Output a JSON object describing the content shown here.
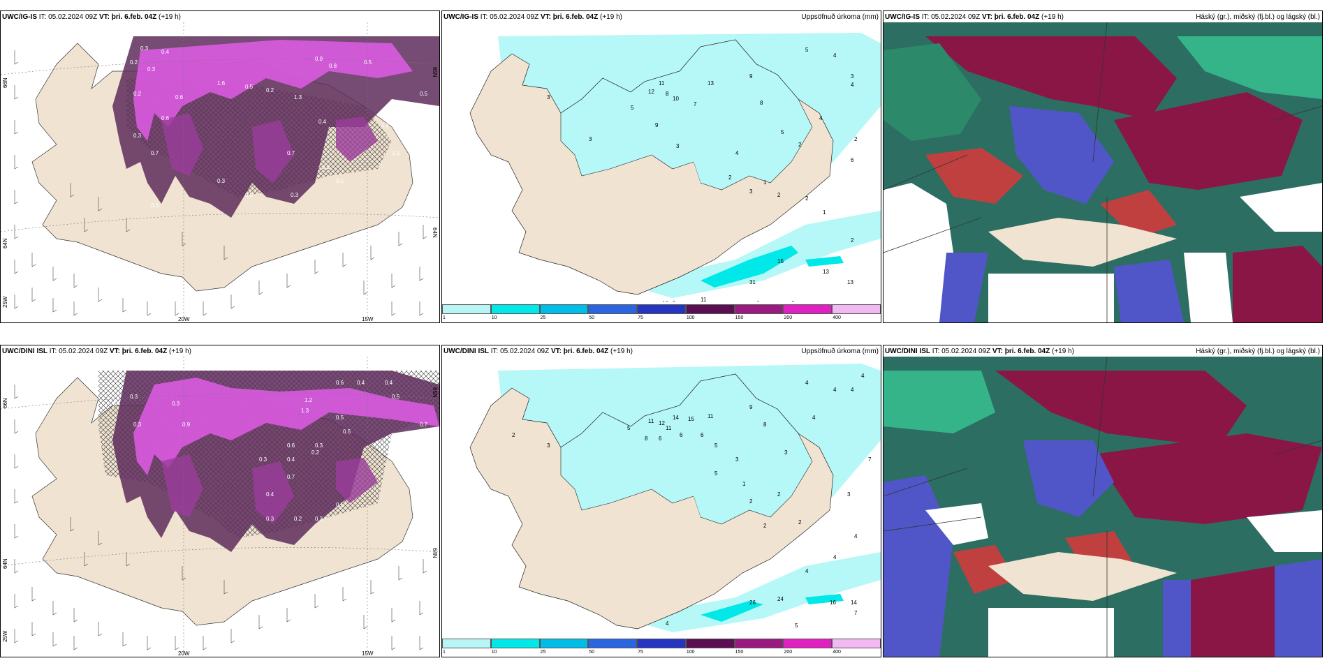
{
  "panels": [
    {
      "model": "UWC/IG-IS",
      "it": "IT: 05.02.2024 09Z",
      "vt": "VT: þri. 6.feb. 04Z",
      "lead": "(+19 h)",
      "right": ""
    },
    {
      "model": "UWC/IG-IS",
      "it": "IT: 05.02.2024 09Z",
      "vt": "VT: þri. 6.feb. 04Z",
      "lead": "(+19 h)",
      "right": "Uppsöfnuð úrkoma (mm)"
    },
    {
      "model": "UWC/IG-IS",
      "it": "IT: 05.02.2024 09Z",
      "vt": "VT: þri. 6.feb. 04Z",
      "lead": "(+19 h)",
      "right": "Háský (gr.), miðský (fj.bl.) og lágský (bl.)"
    },
    {
      "model": "UWC/DINI ISL",
      "it": "IT: 05.02.2024 09Z",
      "vt": "VT: þri. 6.feb. 04Z",
      "lead": "(+19 h)",
      "right": ""
    },
    {
      "model": "UWC/DINI ISL",
      "it": "IT: 05.02.2024 09Z",
      "vt": "VT: þri. 6.feb. 04Z",
      "lead": "(+19 h)",
      "right": "Uppsöfnuð úrkoma (mm)"
    },
    {
      "model": "UWC/DINI ISL",
      "it": "IT: 05.02.2024 09Z",
      "vt": "VT: þri. 6.feb. 04Z",
      "lead": "(+19 h)",
      "right": "Háský (gr.), miðský (fj.bl.) og lágský (bl.)"
    }
  ],
  "axis_labels": {
    "lon_20": "20W",
    "lon_15": "15W",
    "lat_66": "66N",
    "lat_64": "64N",
    "lat_65": "65N",
    "lon_25": "25W"
  },
  "precip_legend": {
    "ticks": [
      "1",
      "10",
      "25",
      "50",
      "75",
      "100",
      "150",
      "200",
      "400"
    ],
    "colors": [
      "#b8f6f6",
      "#00e8e8",
      "#00bde8",
      "#2b66e0",
      "#2535c0",
      "#5a0f52",
      "#9a1a80",
      "#e020c0",
      "#f2b8f2"
    ]
  },
  "colors": {
    "land": "#f3e6d6",
    "snow_dark": "#5e2d5c",
    "snow_mid": "#9b3c9b",
    "snow_light": "#e05ce8",
    "sea_precip": "#b6f7f7",
    "cloud_high": "#8a1646",
    "cloud_mid": "#2c7a5a",
    "cloud_low": "#5056c8"
  },
  "top_left_values": [
    "0.3",
    "0.4",
    "0.2",
    "0.3",
    "0.9",
    "0.8",
    "0.5",
    "1.6",
    "0.5",
    "0.2",
    "0.6",
    "0.7",
    "0.3",
    "1.3",
    "0.5",
    "0.2",
    "0.7",
    "0.3",
    "0.4",
    "0.3",
    "0.5",
    "0.3",
    "0.5",
    "0.6",
    "0.3",
    "1.2",
    "0.2"
  ],
  "top_mid_values": [
    "5",
    "4",
    "3",
    "4",
    "9",
    "11",
    "13",
    "12",
    "8",
    "10",
    "7",
    "5",
    "9",
    "8",
    "5",
    "4",
    "3",
    "3",
    "2",
    "4",
    "2",
    "3",
    "2",
    "1",
    "2",
    "6",
    "2",
    "1",
    "15",
    "13",
    "31",
    "13",
    "2",
    "11",
    "9",
    "6",
    "3",
    "10",
    "3"
  ],
  "bot_left_values": [
    "0.2",
    "0.3",
    "0.4",
    "0.3",
    "0.6",
    "0.4",
    "0.5",
    "1.2",
    "1.3",
    "0.5",
    "0.4",
    "0.7",
    "0.4",
    "0.3",
    "0.9",
    "0.5",
    "0.3",
    "0.6",
    "0.2",
    "0.3",
    "0.4",
    "0.7",
    "0.5",
    "0.3",
    "0.2",
    "0.3"
  ],
  "bot_mid_values": [
    "4",
    "4",
    "4",
    "4",
    "2",
    "3",
    "5",
    "11",
    "14",
    "15",
    "11",
    "9",
    "6",
    "6",
    "8",
    "12",
    "11",
    "6",
    "5",
    "8",
    "4",
    "3",
    "5",
    "2",
    "3",
    "2",
    "1",
    "2",
    "2",
    "4",
    "7",
    "3",
    "4",
    "4",
    "26",
    "24",
    "16",
    "14",
    "7",
    "5",
    "4"
  ]
}
